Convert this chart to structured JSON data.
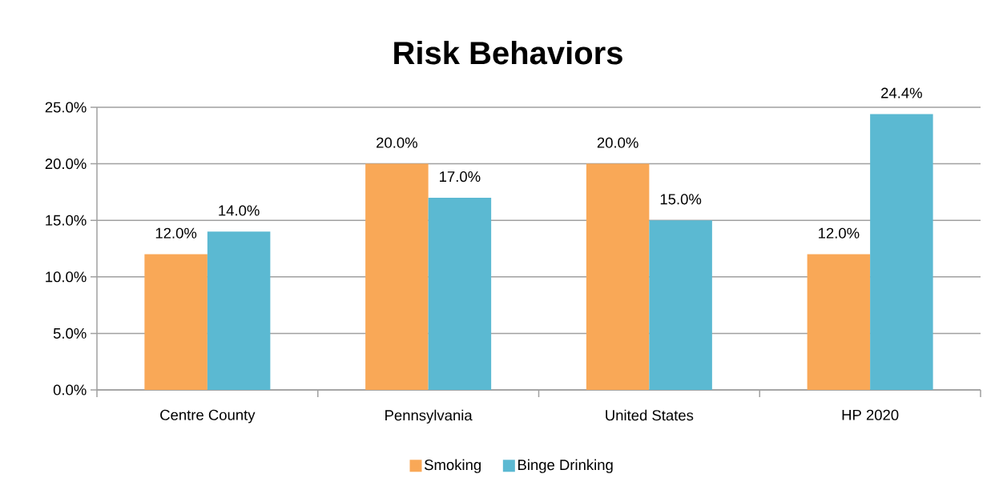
{
  "chart_data": {
    "type": "bar",
    "title": "Risk Behaviors",
    "categories": [
      "Centre County",
      "Pennsylvania",
      "United States",
      "HP 2020"
    ],
    "series": [
      {
        "name": "Smoking",
        "color": "#f9a857",
        "values": [
          12,
          20,
          20,
          12
        ],
        "value_labels": [
          "12.0%",
          "20.0%",
          "20.0%",
          "12.0%"
        ]
      },
      {
        "name": "Binge Drinking",
        "color": "#5bb9d2",
        "values": [
          14,
          17,
          15,
          24.4
        ],
        "value_labels": [
          "14.0%",
          "17.0%",
          "15.0%",
          "24.4%"
        ]
      }
    ],
    "ylim": [
      0,
      25
    ],
    "yticks": [
      {
        "value": 0,
        "label": "0.0%"
      },
      {
        "value": 5,
        "label": "5.0%"
      },
      {
        "value": 10,
        "label": "10.0%"
      },
      {
        "value": 15,
        "label": "15.0%"
      },
      {
        "value": 20,
        "label": "20.0%"
      },
      {
        "value": 25,
        "label": "25.0%"
      }
    ],
    "grid": "y",
    "legend": "bottom"
  }
}
